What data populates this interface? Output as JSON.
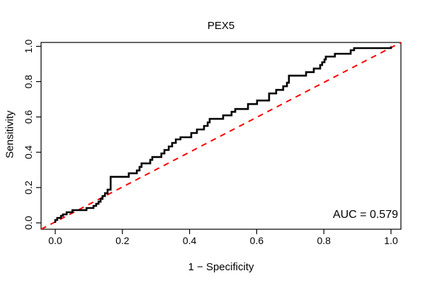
{
  "chart": {
    "title": "PEX5",
    "xlabel": "1 − Specificity",
    "ylabel": "Sensitivity",
    "auc_label": "AUC = 0.579"
  },
  "chart_data": {
    "type": "line",
    "subtype": "roc-step-curve",
    "title": "PEX5",
    "xlabel": "1 − Specificity",
    "ylabel": "Sensitivity",
    "xlim": [
      0,
      1
    ],
    "ylim": [
      0,
      1
    ],
    "x_ticks": [
      0.0,
      0.2,
      0.4,
      0.6,
      0.8,
      1.0
    ],
    "y_ticks": [
      0.0,
      0.2,
      0.4,
      0.6,
      0.8,
      1.0
    ],
    "grid": false,
    "legend": "none",
    "annotation": "AUC = 0.579",
    "auc": 0.579,
    "colors": {
      "curve": "#000000",
      "reference": "#ff0000",
      "axis": "#000000"
    },
    "series": [
      {
        "name": "ROC curve",
        "color": "#000000",
        "line_style": "solid-step",
        "points": [
          [
            0.0,
            0.0
          ],
          [
            0.0,
            0.016
          ],
          [
            0.006,
            0.016
          ],
          [
            0.006,
            0.028
          ],
          [
            0.017,
            0.028
          ],
          [
            0.017,
            0.04
          ],
          [
            0.023,
            0.04
          ],
          [
            0.023,
            0.048
          ],
          [
            0.034,
            0.048
          ],
          [
            0.034,
            0.06
          ],
          [
            0.051,
            0.06
          ],
          [
            0.051,
            0.072
          ],
          [
            0.093,
            0.072
          ],
          [
            0.093,
            0.084
          ],
          [
            0.114,
            0.084
          ],
          [
            0.114,
            0.096
          ],
          [
            0.122,
            0.096
          ],
          [
            0.122,
            0.108
          ],
          [
            0.129,
            0.108
          ],
          [
            0.129,
            0.12
          ],
          [
            0.135,
            0.12
          ],
          [
            0.135,
            0.136
          ],
          [
            0.141,
            0.136
          ],
          [
            0.141,
            0.152
          ],
          [
            0.148,
            0.152
          ],
          [
            0.148,
            0.168
          ],
          [
            0.156,
            0.168
          ],
          [
            0.156,
            0.188
          ],
          [
            0.165,
            0.188
          ],
          [
            0.165,
            0.261
          ],
          [
            0.219,
            0.261
          ],
          [
            0.219,
            0.281
          ],
          [
            0.243,
            0.281
          ],
          [
            0.243,
            0.297
          ],
          [
            0.251,
            0.297
          ],
          [
            0.251,
            0.317
          ],
          [
            0.257,
            0.317
          ],
          [
            0.257,
            0.337
          ],
          [
            0.283,
            0.337
          ],
          [
            0.283,
            0.357
          ],
          [
            0.289,
            0.357
          ],
          [
            0.289,
            0.373
          ],
          [
            0.316,
            0.373
          ],
          [
            0.316,
            0.393
          ],
          [
            0.325,
            0.393
          ],
          [
            0.325,
            0.413
          ],
          [
            0.338,
            0.413
          ],
          [
            0.338,
            0.433
          ],
          [
            0.348,
            0.433
          ],
          [
            0.348,
            0.453
          ],
          [
            0.359,
            0.453
          ],
          [
            0.359,
            0.473
          ],
          [
            0.373,
            0.473
          ],
          [
            0.373,
            0.485
          ],
          [
            0.405,
            0.485
          ],
          [
            0.405,
            0.509
          ],
          [
            0.422,
            0.509
          ],
          [
            0.422,
            0.529
          ],
          [
            0.443,
            0.529
          ],
          [
            0.443,
            0.549
          ],
          [
            0.454,
            0.549
          ],
          [
            0.454,
            0.569
          ],
          [
            0.46,
            0.569
          ],
          [
            0.46,
            0.589
          ],
          [
            0.5,
            0.589
          ],
          [
            0.5,
            0.609
          ],
          [
            0.525,
            0.609
          ],
          [
            0.525,
            0.629
          ],
          [
            0.536,
            0.629
          ],
          [
            0.536,
            0.645
          ],
          [
            0.574,
            0.645
          ],
          [
            0.574,
            0.673
          ],
          [
            0.601,
            0.673
          ],
          [
            0.601,
            0.693
          ],
          [
            0.637,
            0.693
          ],
          [
            0.637,
            0.733
          ],
          [
            0.658,
            0.733
          ],
          [
            0.658,
            0.753
          ],
          [
            0.679,
            0.753
          ],
          [
            0.679,
            0.774
          ],
          [
            0.69,
            0.774
          ],
          [
            0.69,
            0.794
          ],
          [
            0.696,
            0.794
          ],
          [
            0.696,
            0.834
          ],
          [
            0.747,
            0.834
          ],
          [
            0.747,
            0.854
          ],
          [
            0.77,
            0.854
          ],
          [
            0.77,
            0.874
          ],
          [
            0.789,
            0.874
          ],
          [
            0.789,
            0.894
          ],
          [
            0.795,
            0.894
          ],
          [
            0.795,
            0.91
          ],
          [
            0.802,
            0.91
          ],
          [
            0.802,
            0.926
          ],
          [
            0.806,
            0.926
          ],
          [
            0.806,
            0.942
          ],
          [
            0.833,
            0.942
          ],
          [
            0.833,
            0.958
          ],
          [
            0.88,
            0.958
          ],
          [
            0.88,
            0.978
          ],
          [
            0.89,
            0.978
          ],
          [
            0.89,
            0.99
          ],
          [
            1.0,
            0.99
          ],
          [
            1.0,
            1.0
          ]
        ]
      },
      {
        "name": "chance diagonal",
        "color": "#ff0000",
        "line_style": "dashed",
        "points": [
          [
            0,
            0
          ],
          [
            1,
            1
          ]
        ]
      }
    ]
  }
}
